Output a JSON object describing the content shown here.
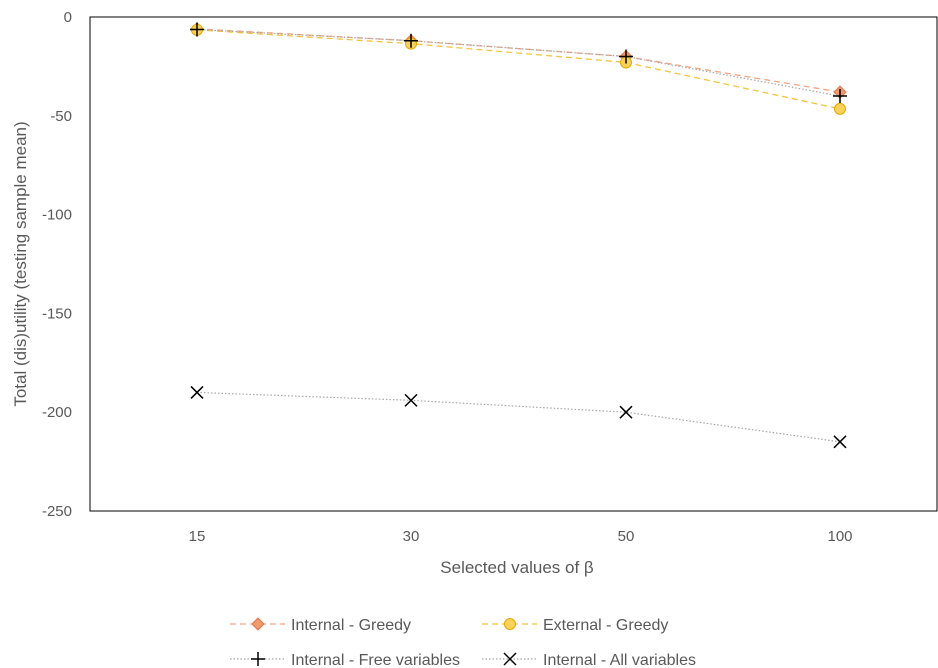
{
  "chart_data": {
    "type": "line",
    "title": "",
    "xlabel": "Selected values of β",
    "ylabel": "Total (dis)utility (testing sample mean)",
    "categories": [
      "15",
      "30",
      "50",
      "100"
    ],
    "ylim": [
      -250,
      0
    ],
    "yticks": [
      0,
      -50,
      -100,
      -150,
      -200,
      -250
    ],
    "ytick_labels": [
      "0",
      "-50",
      "-100",
      "-150",
      "-200",
      "-250"
    ],
    "grid": false,
    "legend_position": "bottom",
    "series": [
      {
        "name": "Internal - Greedy",
        "values": [
          -6,
          -12,
          -20,
          -38
        ],
        "color": "#f4a582",
        "marker": "diamond",
        "line": "dashed"
      },
      {
        "name": "External - Greedy",
        "values": [
          -6.5,
          -13.5,
          -23,
          -46.5
        ],
        "color": "#f2c43d",
        "marker": "circle",
        "line": "dashed"
      },
      {
        "name": "Internal - Free variables",
        "values": [
          -6.3,
          -12,
          -20,
          -40
        ],
        "color": "#a6a6a6",
        "marker": "plus",
        "line": "dotted"
      },
      {
        "name": "Internal - All  variables",
        "values": [
          -190,
          -194,
          -200,
          -215
        ],
        "color": "#a6a6a6",
        "marker": "x",
        "line": "dotted"
      }
    ]
  }
}
